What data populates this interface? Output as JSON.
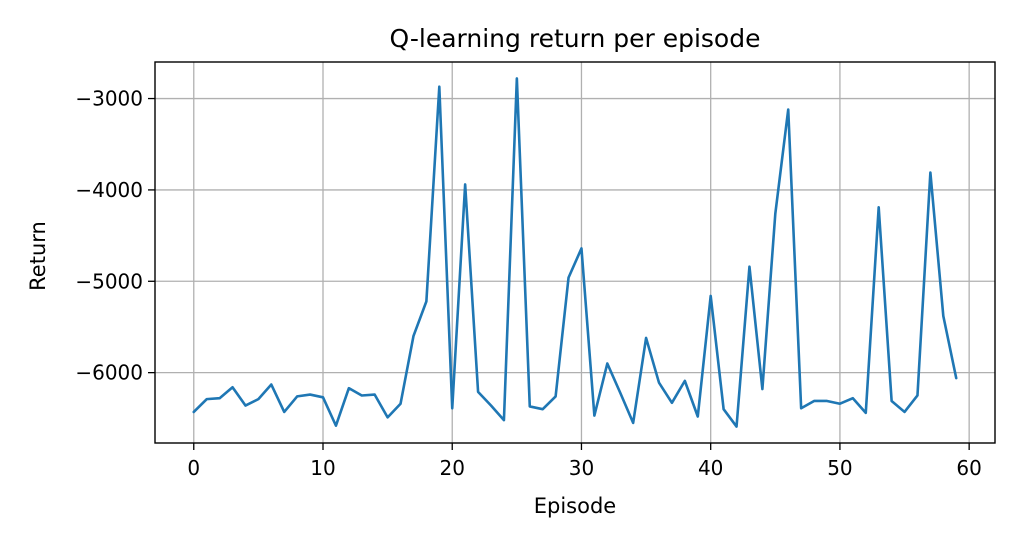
{
  "chart_data": {
    "type": "line",
    "title": "Q-learning return per episode",
    "xlabel": "Episode",
    "ylabel": "Return",
    "xlim": [
      -3,
      62
    ],
    "ylim": [
      -6770,
      -2600
    ],
    "grid": true,
    "line_color": "#1f77b4",
    "xticks": [
      0,
      10,
      20,
      30,
      40,
      50,
      60
    ],
    "xtick_labels": [
      "0",
      "10",
      "20",
      "30",
      "40",
      "50",
      "60"
    ],
    "yticks": [
      -3000,
      -4000,
      -5000,
      -6000
    ],
    "ytick_labels": [
      "−3000",
      "−4000",
      "−5000",
      "−6000"
    ],
    "series": [
      {
        "x": [
          0,
          1,
          2,
          3,
          4,
          5,
          6,
          7,
          8,
          9,
          10,
          11,
          12,
          13,
          14,
          15,
          16,
          17,
          18,
          19,
          20,
          21,
          22,
          23,
          24,
          25,
          26,
          27,
          28,
          29,
          30,
          31,
          32,
          33,
          34,
          35,
          36,
          37,
          38,
          39,
          40,
          41,
          42,
          43,
          44,
          45,
          46,
          47,
          48,
          49,
          50,
          51,
          52,
          53,
          54,
          55,
          56,
          57,
          58,
          59
        ],
        "values": [
          -6430,
          -6290,
          -6280,
          -6160,
          -6360,
          -6290,
          -6130,
          -6430,
          -6260,
          -6240,
          -6270,
          -6580,
          -6170,
          -6250,
          -6240,
          -6490,
          -6340,
          -5600,
          -5220,
          -2870,
          -6390,
          -3940,
          -6210,
          -6360,
          -6520,
          -2780,
          -6370,
          -6400,
          -6260,
          -4960,
          -4640,
          -6470,
          -5900,
          -6220,
          -6550,
          -5620,
          -6110,
          -6330,
          -6090,
          -6480,
          -5160,
          -6400,
          -6590,
          -4840,
          -6180,
          -4260,
          -3120,
          -6390,
          -6310,
          -6310,
          -6340,
          -6280,
          -6440,
          -4190,
          -6310,
          -6430,
          -6250,
          -3810,
          -5380,
          -6060
        ]
      }
    ]
  }
}
